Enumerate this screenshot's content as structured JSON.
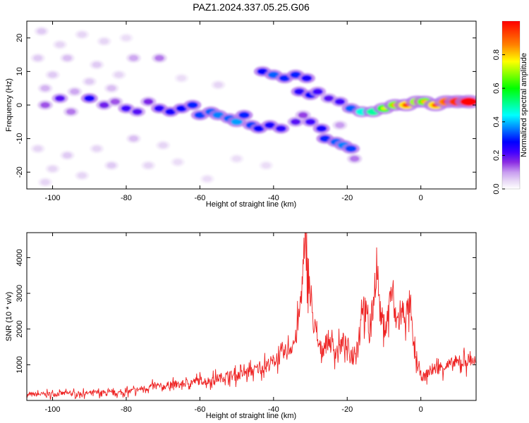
{
  "figure_title": "PAZ1.2024.337.05.25.G06",
  "chart_data": [
    {
      "type": "heatmap",
      "xlabel": "Height of straight line (km)",
      "ylabel": "Frequency (Hz)",
      "xlim": [
        -107,
        15
      ],
      "ylim": [
        -25,
        25
      ],
      "x_ticks": [
        -100,
        -80,
        -60,
        -40,
        -20,
        0
      ],
      "y_ticks": [
        -20,
        -10,
        0,
        10,
        20
      ],
      "colorbar": {
        "label": "Normalized spectral amplitude",
        "range": [
          0,
          1
        ],
        "ticks": [
          0.0,
          0.2,
          0.4,
          0.6,
          0.8
        ],
        "colormap": [
          "#ffffff",
          "#e6d5f5",
          "#c89cf0",
          "#8a2be2",
          "#4000ff",
          "#0000ff",
          "#0080ff",
          "#00ffff",
          "#00ff80",
          "#00ff00",
          "#80ff00",
          "#ffff00",
          "#ff8000",
          "#ff0000"
        ]
      },
      "blobs": [
        {
          "x": -103,
          "y": 22,
          "amp": 0.06
        },
        {
          "x": -98,
          "y": 18,
          "amp": 0.05
        },
        {
          "x": -92,
          "y": 21,
          "amp": 0.05
        },
        {
          "x": -86,
          "y": 19,
          "amp": 0.05
        },
        {
          "x": -80,
          "y": 20,
          "amp": 0.04
        },
        {
          "x": -104,
          "y": 14,
          "amp": 0.06
        },
        {
          "x": -96,
          "y": 14,
          "amp": 0.07
        },
        {
          "x": -88,
          "y": 12,
          "amp": 0.06
        },
        {
          "x": -78,
          "y": 14,
          "amp": 0.09
        },
        {
          "x": -71,
          "y": 14,
          "amp": 0.12
        },
        {
          "x": -100,
          "y": 9,
          "amp": 0.06
        },
        {
          "x": -90,
          "y": 7,
          "amp": 0.06
        },
        {
          "x": -82,
          "y": 9,
          "amp": 0.05
        },
        {
          "x": -102,
          "y": 5,
          "amp": 0.08
        },
        {
          "x": -94,
          "y": 4,
          "amp": 0.09
        },
        {
          "x": -84,
          "y": 5,
          "amp": 0.07
        },
        {
          "x": -104,
          "y": -13,
          "amp": 0.05
        },
        {
          "x": -96,
          "y": -15,
          "amp": 0.06
        },
        {
          "x": -88,
          "y": -13,
          "amp": 0.05
        },
        {
          "x": -78,
          "y": -10,
          "amp": 0.07
        },
        {
          "x": -70,
          "y": -12,
          "amp": 0.05
        },
        {
          "x": -100,
          "y": -19,
          "amp": 0.05
        },
        {
          "x": -92,
          "y": -21,
          "amp": 0.05
        },
        {
          "x": -84,
          "y": -18,
          "amp": 0.06
        },
        {
          "x": -74,
          "y": -18,
          "amp": 0.05
        },
        {
          "x": -66,
          "y": -17,
          "amp": 0.04
        },
        {
          "x": -102,
          "y": -23,
          "amp": 0.05
        },
        {
          "x": -58,
          "y": -22,
          "amp": 0.04
        },
        {
          "x": -50,
          "y": -16,
          "amp": 0.04
        },
        {
          "x": -42,
          "y": -18,
          "amp": 0.04
        },
        {
          "x": -65,
          "y": 8,
          "amp": 0.04
        },
        {
          "x": -55,
          "y": 6,
          "amp": 0.05
        },
        {
          "x": -102,
          "y": 0,
          "amp": 0.14
        },
        {
          "x": -98,
          "y": 2,
          "amp": 0.2
        },
        {
          "x": -95,
          "y": -2,
          "amp": 0.12
        },
        {
          "x": -90,
          "y": 2,
          "amp": 0.26
        },
        {
          "x": -86,
          "y": 0,
          "amp": 0.18
        },
        {
          "x": -83,
          "y": 1,
          "amp": 0.14
        },
        {
          "x": -80,
          "y": -1,
          "amp": 0.22
        },
        {
          "x": -77,
          "y": -2,
          "amp": 0.2
        },
        {
          "x": -74,
          "y": 1,
          "amp": 0.17
        },
        {
          "x": -71,
          "y": -1,
          "amp": 0.24
        },
        {
          "x": -68,
          "y": -2,
          "amp": 0.26
        },
        {
          "x": -65,
          "y": -1,
          "amp": 0.28
        },
        {
          "x": -62,
          "y": 0,
          "amp": 0.3
        },
        {
          "x": -60,
          "y": -3,
          "amp": 0.32
        },
        {
          "x": -57,
          "y": -2,
          "amp": 0.34
        },
        {
          "x": -55,
          "y": -3,
          "amp": 0.36
        },
        {
          "x": -52,
          "y": -4,
          "amp": 0.34
        },
        {
          "x": -50,
          "y": -5,
          "amp": 0.38
        },
        {
          "x": -48,
          "y": -3,
          "amp": 0.3
        },
        {
          "x": -46,
          "y": -6,
          "amp": 0.32
        },
        {
          "x": -44,
          "y": -7,
          "amp": 0.28
        },
        {
          "x": -41,
          "y": -6,
          "amp": 0.26
        },
        {
          "x": -38,
          "y": -7,
          "amp": 0.24
        },
        {
          "x": -34,
          "y": -5,
          "amp": 0.2
        },
        {
          "x": -32,
          "y": -3,
          "amp": 0.15
        },
        {
          "x": -43,
          "y": 10,
          "amp": 0.28
        },
        {
          "x": -40,
          "y": 9,
          "amp": 0.34
        },
        {
          "x": -37,
          "y": 8,
          "amp": 0.3
        },
        {
          "x": -34,
          "y": 9,
          "amp": 0.3
        },
        {
          "x": -31,
          "y": 8,
          "amp": 0.26
        },
        {
          "x": -33,
          "y": 4,
          "amp": 0.24
        },
        {
          "x": -30,
          "y": 3,
          "amp": 0.28
        },
        {
          "x": -28,
          "y": 4,
          "amp": 0.22
        },
        {
          "x": -25,
          "y": 2,
          "amp": 0.2
        },
        {
          "x": -22,
          "y": 1,
          "amp": 0.22
        },
        {
          "x": -19,
          "y": -1,
          "amp": 0.34
        },
        {
          "x": -16,
          "y": -2,
          "amp": 0.46
        },
        {
          "x": -13,
          "y": -2,
          "amp": 0.5
        },
        {
          "x": -10,
          "y": -1,
          "amp": 0.58
        },
        {
          "x": -7,
          "y": 0,
          "amp": 0.68
        },
        {
          "x": -4,
          "y": 0,
          "amp": 0.78
        },
        {
          "x": -1,
          "y": 1,
          "amp": 0.7
        },
        {
          "x": 1,
          "y": 1,
          "amp": 0.66
        },
        {
          "x": 4,
          "y": 0,
          "amp": 0.78
        },
        {
          "x": 7,
          "y": 1,
          "amp": 0.86
        },
        {
          "x": 10,
          "y": 1,
          "amp": 0.94
        },
        {
          "x": 13,
          "y": 1,
          "amp": 1.0
        },
        {
          "x": -30,
          "y": -5,
          "amp": 0.22
        },
        {
          "x": -27,
          "y": -7,
          "amp": 0.26
        },
        {
          "x": -26,
          "y": -10,
          "amp": 0.3
        },
        {
          "x": -23,
          "y": -11,
          "amp": 0.34
        },
        {
          "x": -21,
          "y": -12,
          "amp": 0.36
        },
        {
          "x": -19,
          "y": -13,
          "amp": 0.32
        },
        {
          "x": -18,
          "y": -16,
          "amp": 0.12
        },
        {
          "x": -22,
          "y": -6,
          "amp": 0.1
        }
      ]
    },
    {
      "type": "line",
      "xlabel": "Height of straight line (km)",
      "ylabel": "SNR (10 * v/v)",
      "xlim": [
        -107,
        15
      ],
      "ylim": [
        0,
        4700
      ],
      "x_ticks": [
        -100,
        -80,
        -60,
        -40,
        -20,
        0
      ],
      "y_ticks": [
        1000,
        2000,
        3000,
        4000
      ],
      "series": [
        {
          "color": "#ee2222",
          "x": [
            -107,
            -104,
            -100,
            -96,
            -92,
            -88,
            -84,
            -80,
            -78,
            -76,
            -74,
            -72,
            -70,
            -68,
            -66,
            -64,
            -62,
            -60,
            -58,
            -56,
            -54,
            -52,
            -50,
            -48,
            -46,
            -44,
            -42,
            -40,
            -38,
            -36,
            -34,
            -33,
            -32,
            -31,
            -30,
            -29,
            -28,
            -27,
            -26,
            -25,
            -24,
            -23,
            -22,
            -21,
            -20,
            -19,
            -18,
            -17,
            -16,
            -15,
            -14,
            -13,
            -12,
            -11,
            -10,
            -9,
            -8,
            -7,
            -6,
            -5,
            -4,
            -3,
            -2,
            -1,
            0,
            1,
            2,
            4,
            6,
            8,
            10,
            12,
            14,
            15
          ],
          "y": [
            150,
            170,
            180,
            200,
            190,
            220,
            200,
            230,
            280,
            320,
            360,
            400,
            380,
            450,
            420,
            480,
            520,
            560,
            540,
            600,
            650,
            700,
            680,
            760,
            820,
            900,
            980,
            1100,
            1250,
            1400,
            1700,
            2400,
            3600,
            4300,
            2800,
            2100,
            1600,
            1400,
            1550,
            1700,
            1500,
            1350,
            1500,
            1650,
            1450,
            1300,
            1400,
            1600,
            2800,
            2500,
            1900,
            2600,
            3900,
            2400,
            2100,
            2300,
            3200,
            2300,
            2200,
            2500,
            2400,
            2700,
            1500,
            1000,
            700,
            650,
            800,
            900,
            950,
            1000,
            1050,
            1100,
            1150,
            1050
          ]
        }
      ]
    }
  ]
}
